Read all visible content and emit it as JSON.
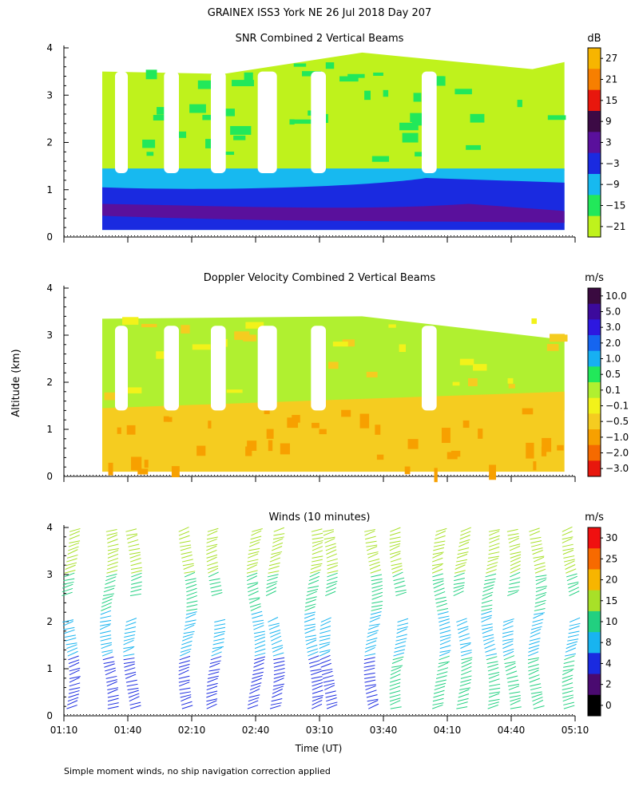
{
  "main_title": "GRAINEX ISS3 York NE  26 Jul 2018 Day 207",
  "x_axis": {
    "label": "Time (UT)",
    "ticks": [
      "01:10",
      "01:40",
      "02:10",
      "02:40",
      "03:10",
      "03:40",
      "04:10",
      "04:40",
      "05:10"
    ]
  },
  "y_axis": {
    "label": "Altitude (km)",
    "ticks": [
      "0",
      "1",
      "2",
      "3",
      "4"
    ]
  },
  "footnote": "Simple moment winds, no ship navigation correction applied",
  "chart_data": [
    {
      "type": "heatmap",
      "title": "SNR Combined 2 Vertical Beams",
      "unit": "dB",
      "ylim": [
        0,
        4
      ],
      "colorbar_labels": [
        "27",
        "21",
        "15",
        "9",
        "3",
        "−3",
        "−9",
        "−15",
        "−21"
      ],
      "colorbar_colors": [
        "#f7b500",
        "#f77f00",
        "#e8170d",
        "#3c0a45",
        "#5a109c",
        "#1a2ae0",
        "#17b9f0",
        "#22e85a",
        "#bff21c"
      ],
      "layers": [
        {
          "level": "-15..-9",
          "ymax": 1.45
        },
        {
          "level": "-3..3",
          "ymax": 0.95
        },
        {
          "level": "3..9",
          "ymax": 0.5
        }
      ]
    },
    {
      "type": "heatmap",
      "title": "Doppler Velocity Combined 2 Vertical Beams",
      "unit": "m/s",
      "ylim": [
        0,
        4
      ],
      "colorbar_labels": [
        "10.0",
        "5.0",
        "3.0",
        "2.0",
        "1.0",
        "0.5",
        "0.1",
        "−0.1",
        "−0.5",
        "−1.0",
        "−2.0",
        "−3.0"
      ],
      "colorbar_colors": [
        "#3a0a40",
        "#3c0a9c",
        "#2d18e0",
        "#1565f0",
        "#17b0f2",
        "#22e85a",
        "#b0f030",
        "#f2f21a",
        "#f5cc20",
        "#f7a000",
        "#f56a00",
        "#e8170d"
      ],
      "dominant_level": "-0.5..-1.0"
    },
    {
      "type": "scatter",
      "title": "Winds (10 minutes)",
      "unit": "m/s",
      "ylim": [
        0,
        4
      ],
      "colorbar_labels": [
        "30",
        "25",
        "20",
        "15",
        "10",
        "8",
        "4",
        "2",
        "0"
      ],
      "colorbar_colors": [
        "#f01010",
        "#f76a00",
        "#f7b500",
        "#a8e028",
        "#22d080",
        "#18b4f0",
        "#1a2ae0",
        "#4a0a70",
        "#000000"
      ],
      "profile_times": [
        "01:10",
        "01:28",
        "01:39",
        "02:05",
        "02:18",
        "02:37",
        "02:46",
        "03:04",
        "03:11",
        "03:32",
        "03:44",
        "04:04",
        "04:14",
        "04:27",
        "04:37",
        "04:49",
        "05:05"
      ]
    }
  ]
}
